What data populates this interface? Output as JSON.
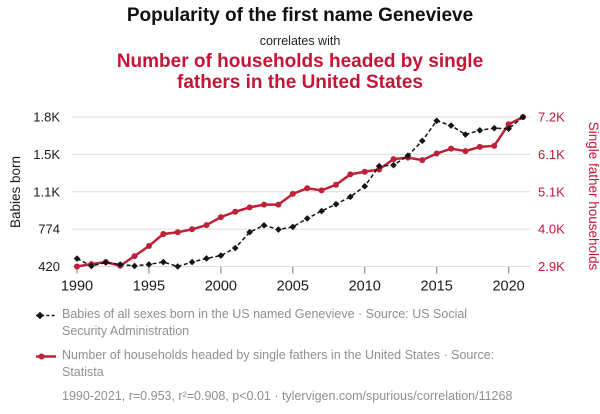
{
  "header": {
    "title": "Popularity of the first name Genevieve",
    "connector": "correlates with",
    "subtitle": "Number of households headed by single fathers in the United States"
  },
  "colors": {
    "accent_red": "#C41537",
    "line_red": "#BE2239",
    "series_black": "#141414",
    "grid": "#DCDCDC",
    "tick": "#999999",
    "axis_text": "#1A1A1A",
    "legend_text": "#8F8F8F"
  },
  "chart_data": {
    "type": "line",
    "title": "Popularity of the first name Genevieve correlates with Number of households headed by single fathers in the United States",
    "grid": "horizontal",
    "legend_position": "bottom",
    "x": [
      1990,
      1991,
      1992,
      1993,
      1994,
      1995,
      1996,
      1997,
      1998,
      1999,
      2000,
      2001,
      2002,
      2003,
      2004,
      2005,
      2006,
      2007,
      2008,
      2009,
      2010,
      2011,
      2012,
      2013,
      2014,
      2015,
      2016,
      2017,
      2018,
      2019,
      2020,
      2021
    ],
    "x_axis": {
      "ticks": [
        1990,
        1995,
        2000,
        2005,
        2010,
        2015,
        2020
      ],
      "range": [
        1990,
        2021
      ]
    },
    "left_axis": {
      "label": "Babies born",
      "range": [
        420,
        1836
      ],
      "ticks": [
        420,
        774,
        1128,
        1482,
        1836
      ],
      "tick_labels": [
        "420",
        "774",
        "1.1K",
        "1.5K",
        "1.8K"
      ]
    },
    "right_axis": {
      "label": "Single father households",
      "range": [
        2900,
        7200
      ],
      "ticks": [
        2900,
        3975,
        5050,
        6125,
        7200
      ],
      "tick_labels": [
        "2.9K",
        "4.0K",
        "5.1K",
        "6.1K",
        "7.2K"
      ]
    },
    "series": [
      {
        "name": "Babies of all sexes born in the US named Genevieve",
        "axis": "left",
        "style": "dashed-diamond",
        "color": "#141414",
        "values": [
          495,
          425,
          458,
          440,
          425,
          440,
          462,
          420,
          462,
          496,
          524,
          595,
          745,
          810,
          770,
          795,
          875,
          945,
          1010,
          1080,
          1180,
          1370,
          1380,
          1470,
          1610,
          1800,
          1755,
          1670,
          1710,
          1730,
          1725,
          1836
        ]
      },
      {
        "name": "Number of households headed by single fathers in the United States",
        "axis": "right",
        "style": "solid-circle",
        "color": "#BE2239",
        "values": [
          2900,
          2970,
          3030,
          2920,
          3200,
          3490,
          3835,
          3885,
          3970,
          4090,
          4320,
          4475,
          4600,
          4680,
          4680,
          4990,
          5150,
          5090,
          5250,
          5550,
          5625,
          5690,
          5990,
          6030,
          5960,
          6150,
          6290,
          6220,
          6340,
          6370,
          6990,
          7200
        ]
      }
    ]
  },
  "legend": {
    "items": [
      {
        "label": "Babies of all sexes born in the US named Genevieve · Source: US Social Security Administration",
        "lines": [
          "Babies of all sexes born in the US named Genevieve · Source: US Social",
          "Security Administration"
        ]
      },
      {
        "label": "Number of households headed by single fathers in the United States · Source: Statista",
        "lines": [
          "Number of households headed by single fathers in the United States · Source:",
          "Statista"
        ]
      }
    ],
    "footer": "1990-2021, r=0.953, r²=0.908, p<0.01 · tylervigen.com/spurious/correlation/11268"
  }
}
